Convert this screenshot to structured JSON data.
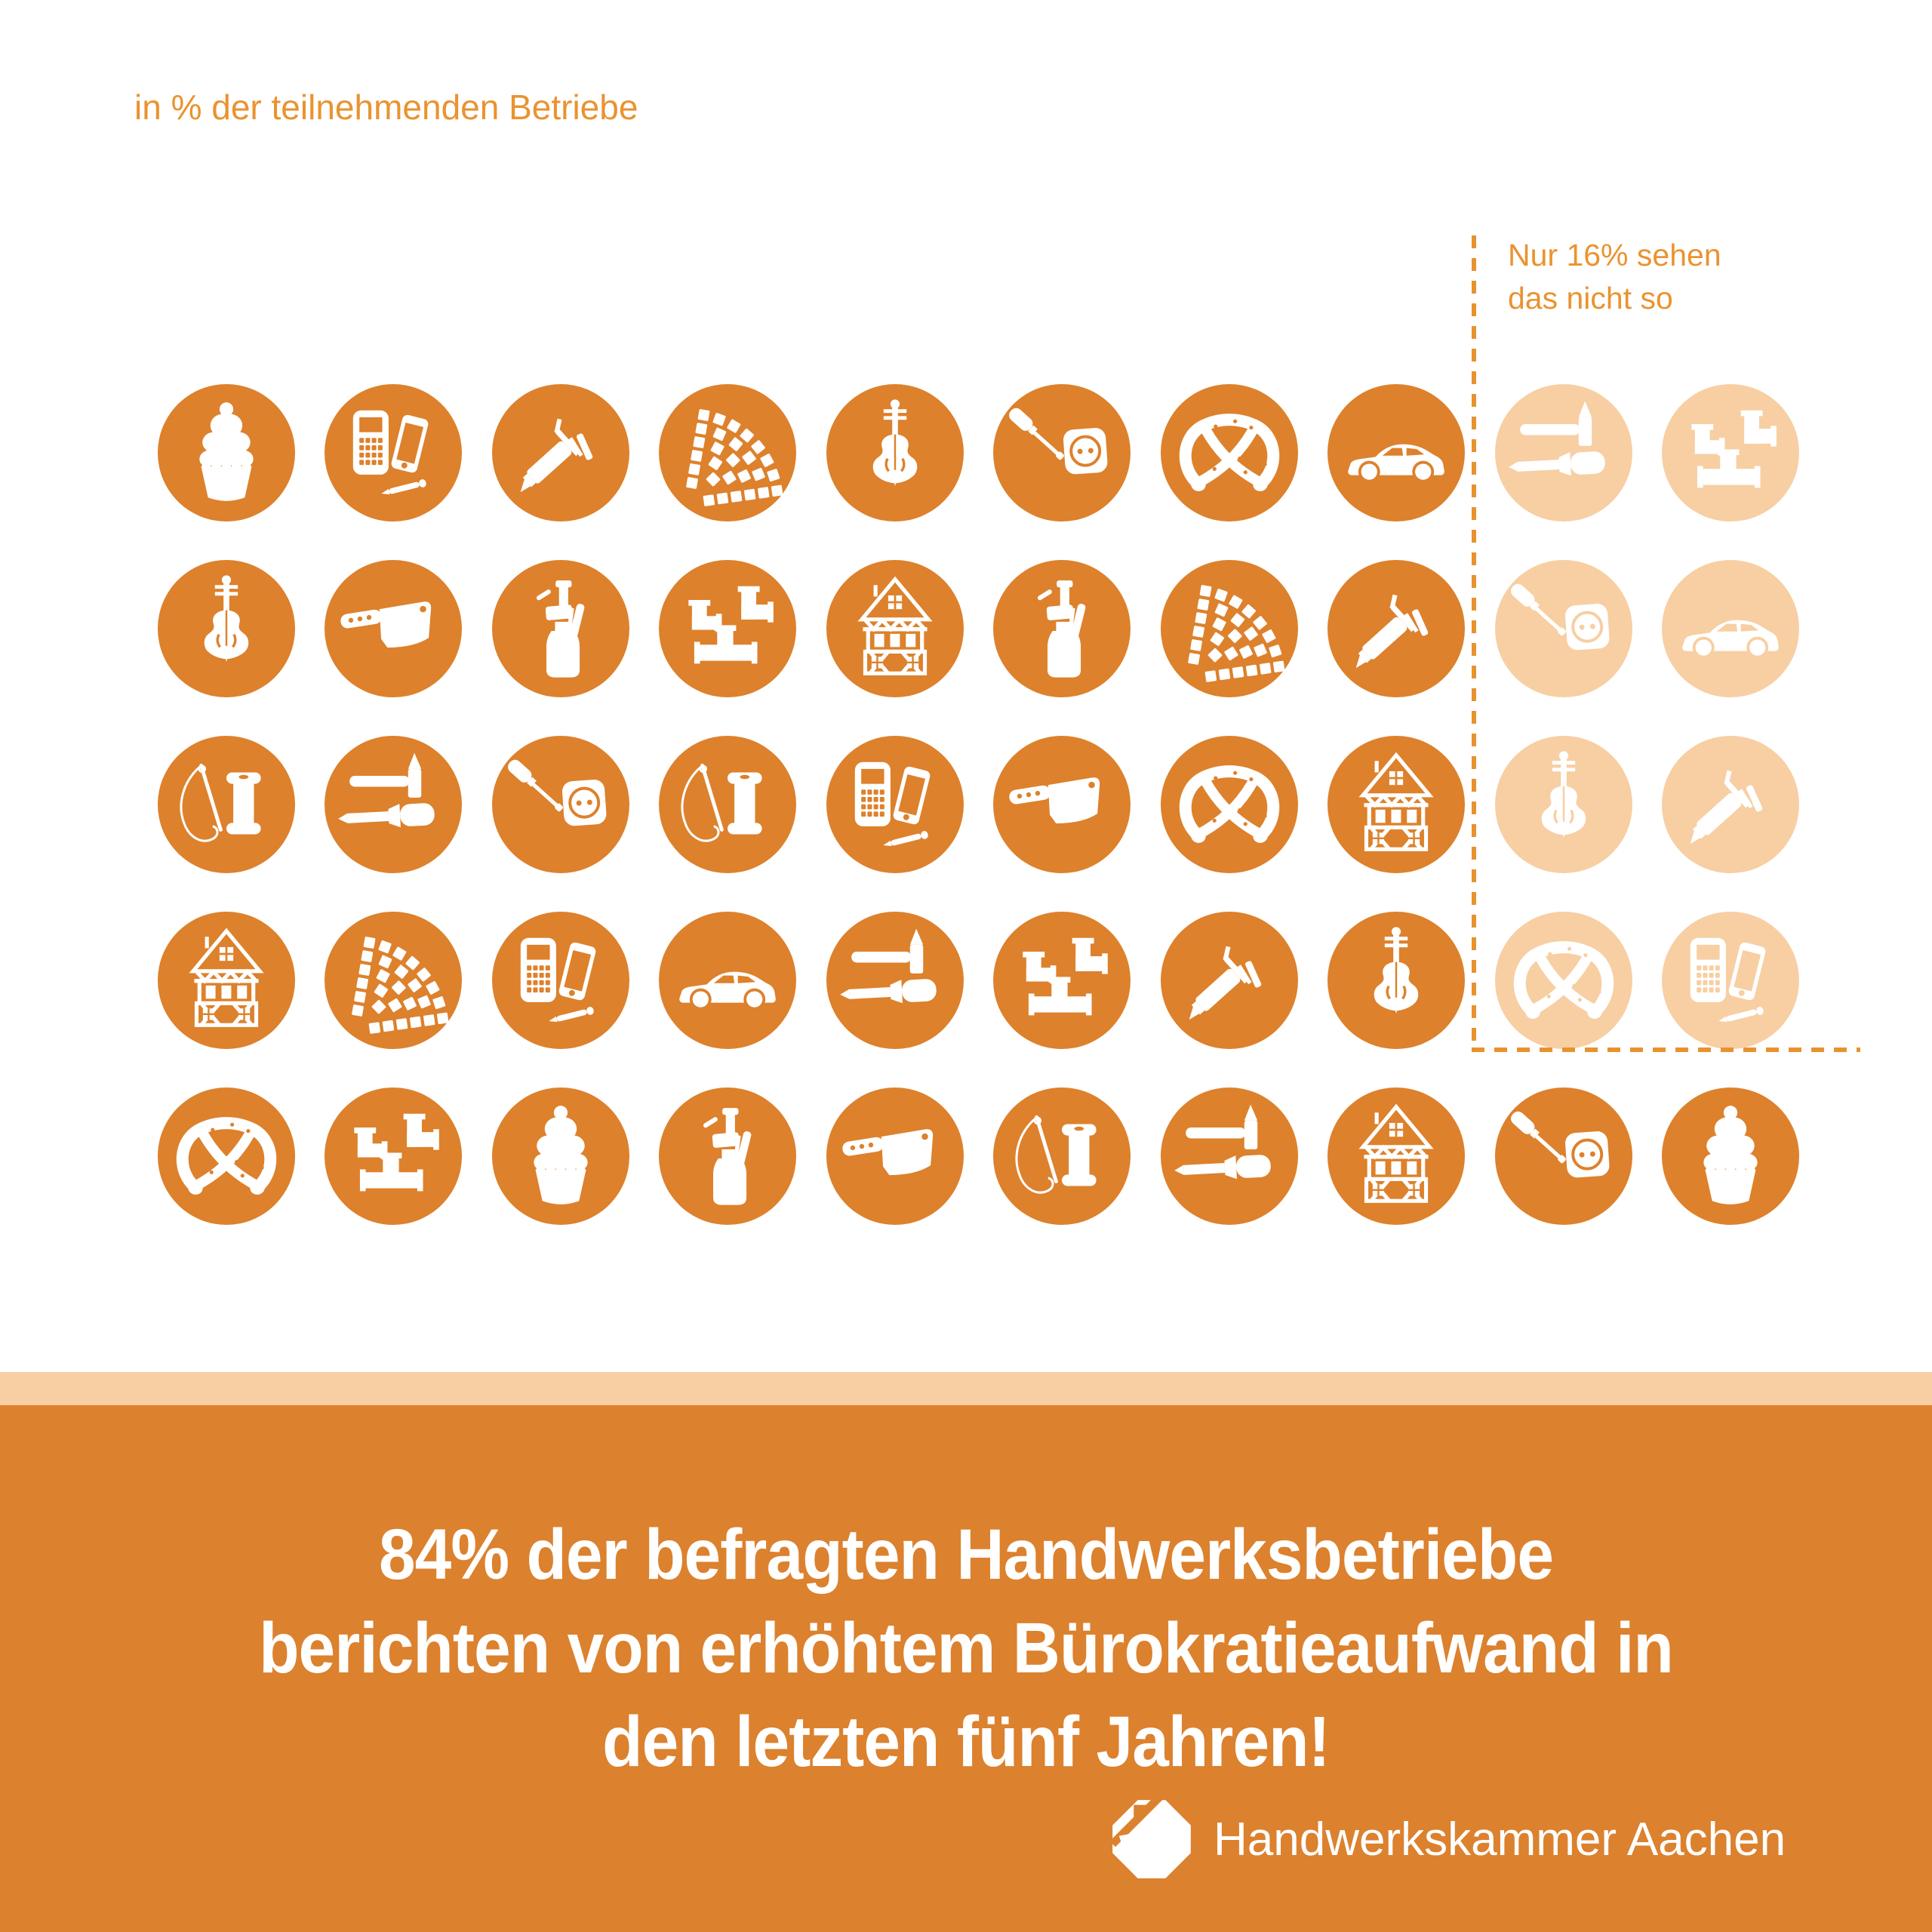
{
  "title_note": "in % der teilnehmenden Betriebe",
  "annotation": {
    "line1": "Nur 16% sehen",
    "line2": "das nicht so"
  },
  "banner": {
    "line1": "84% der befragten Handwerksbetriebe",
    "line2": "berichten von erhöhtem Bürokratieaufwand in",
    "line3": "den letzten fünf Jahren!"
  },
  "brand": {
    "name": "Handwerkskammer Aachen"
  },
  "colors": {
    "primary": "#DD812C",
    "light": "#F7CFA3",
    "label": "#EA9330",
    "dash": "#E8922F",
    "banner_bg": "#DC812E",
    "white": "#FFFFFF"
  },
  "chart_data": {
    "type": "pictogram",
    "title": "in % der teilnehmenden Betriebe",
    "total_units": 50,
    "unit_value_percent": 2,
    "series": [
      {
        "name": "berichten von erhöhtem Bürokratieaufwand (letzte fünf Jahre)",
        "percent": 84,
        "units": 42,
        "color": "#DD812C"
      },
      {
        "name": "sehen das nicht so",
        "percent": 16,
        "units": 8,
        "color": "#F7CFA3"
      }
    ],
    "annotation": "Nur 16% sehen das nicht so",
    "caption": "84% der befragten Handwerksbetriebe berichten von erhöhtem Bürokratieaufwand in den letzten fünf Jahren!",
    "legend_position": "none",
    "grid": "off"
  },
  "icons": [
    "cupcake",
    "calculator-phone",
    "caulk-gun",
    "roof-tiles",
    "violin",
    "screwdriver-socket",
    "pretzel",
    "car",
    "cleaver",
    "spray-gun",
    "pipes",
    "timber-house",
    "needle-thread",
    "hammer-chisel"
  ],
  "grid": {
    "rows": [
      [
        {
          "icon": "cupcake",
          "tone": "dark"
        },
        {
          "icon": "calculator-phone",
          "tone": "dark"
        },
        {
          "icon": "caulk-gun",
          "tone": "dark"
        },
        {
          "icon": "roof-tiles",
          "tone": "dark"
        },
        {
          "icon": "violin",
          "tone": "dark"
        },
        {
          "icon": "screwdriver-socket",
          "tone": "dark"
        },
        {
          "icon": "pretzel",
          "tone": "dark"
        },
        {
          "icon": "car",
          "tone": "dark"
        },
        {
          "icon": "hammer-chisel",
          "tone": "light"
        },
        {
          "icon": "pipes",
          "tone": "light"
        }
      ],
      [
        {
          "icon": "violin",
          "tone": "dark"
        },
        {
          "icon": "cleaver",
          "tone": "dark"
        },
        {
          "icon": "spray-gun",
          "tone": "dark"
        },
        {
          "icon": "pipes",
          "tone": "dark"
        },
        {
          "icon": "timber-house",
          "tone": "dark"
        },
        {
          "icon": "spray-gun",
          "tone": "dark"
        },
        {
          "icon": "roof-tiles",
          "tone": "dark"
        },
        {
          "icon": "caulk-gun",
          "tone": "dark"
        },
        {
          "icon": "screwdriver-socket",
          "tone": "light"
        },
        {
          "icon": "car",
          "tone": "light"
        }
      ],
      [
        {
          "icon": "needle-thread",
          "tone": "dark"
        },
        {
          "icon": "hammer-chisel",
          "tone": "dark"
        },
        {
          "icon": "screwdriver-socket",
          "tone": "dark"
        },
        {
          "icon": "needle-thread",
          "tone": "dark"
        },
        {
          "icon": "calculator-phone",
          "tone": "dark"
        },
        {
          "icon": "cleaver",
          "tone": "dark"
        },
        {
          "icon": "pretzel",
          "tone": "dark"
        },
        {
          "icon": "timber-house",
          "tone": "dark"
        },
        {
          "icon": "violin",
          "tone": "light"
        },
        {
          "icon": "caulk-gun",
          "tone": "light"
        }
      ],
      [
        {
          "icon": "timber-house",
          "tone": "dark"
        },
        {
          "icon": "roof-tiles",
          "tone": "dark"
        },
        {
          "icon": "calculator-phone",
          "tone": "dark"
        },
        {
          "icon": "car",
          "tone": "dark"
        },
        {
          "icon": "hammer-chisel",
          "tone": "dark"
        },
        {
          "icon": "pipes",
          "tone": "dark"
        },
        {
          "icon": "caulk-gun",
          "tone": "dark"
        },
        {
          "icon": "violin",
          "tone": "dark"
        },
        {
          "icon": "pretzel",
          "tone": "light"
        },
        {
          "icon": "calculator-phone",
          "tone": "light"
        }
      ],
      [
        {
          "icon": "pretzel",
          "tone": "dark"
        },
        {
          "icon": "pipes",
          "tone": "dark"
        },
        {
          "icon": "cupcake",
          "tone": "dark"
        },
        {
          "icon": "spray-gun",
          "tone": "dark"
        },
        {
          "icon": "cleaver",
          "tone": "dark"
        },
        {
          "icon": "needle-thread",
          "tone": "dark"
        },
        {
          "icon": "hammer-chisel",
          "tone": "dark"
        },
        {
          "icon": "timber-house",
          "tone": "dark"
        },
        {
          "icon": "screwdriver-socket",
          "tone": "dark"
        },
        {
          "icon": "cupcake",
          "tone": "dark"
        }
      ]
    ]
  }
}
